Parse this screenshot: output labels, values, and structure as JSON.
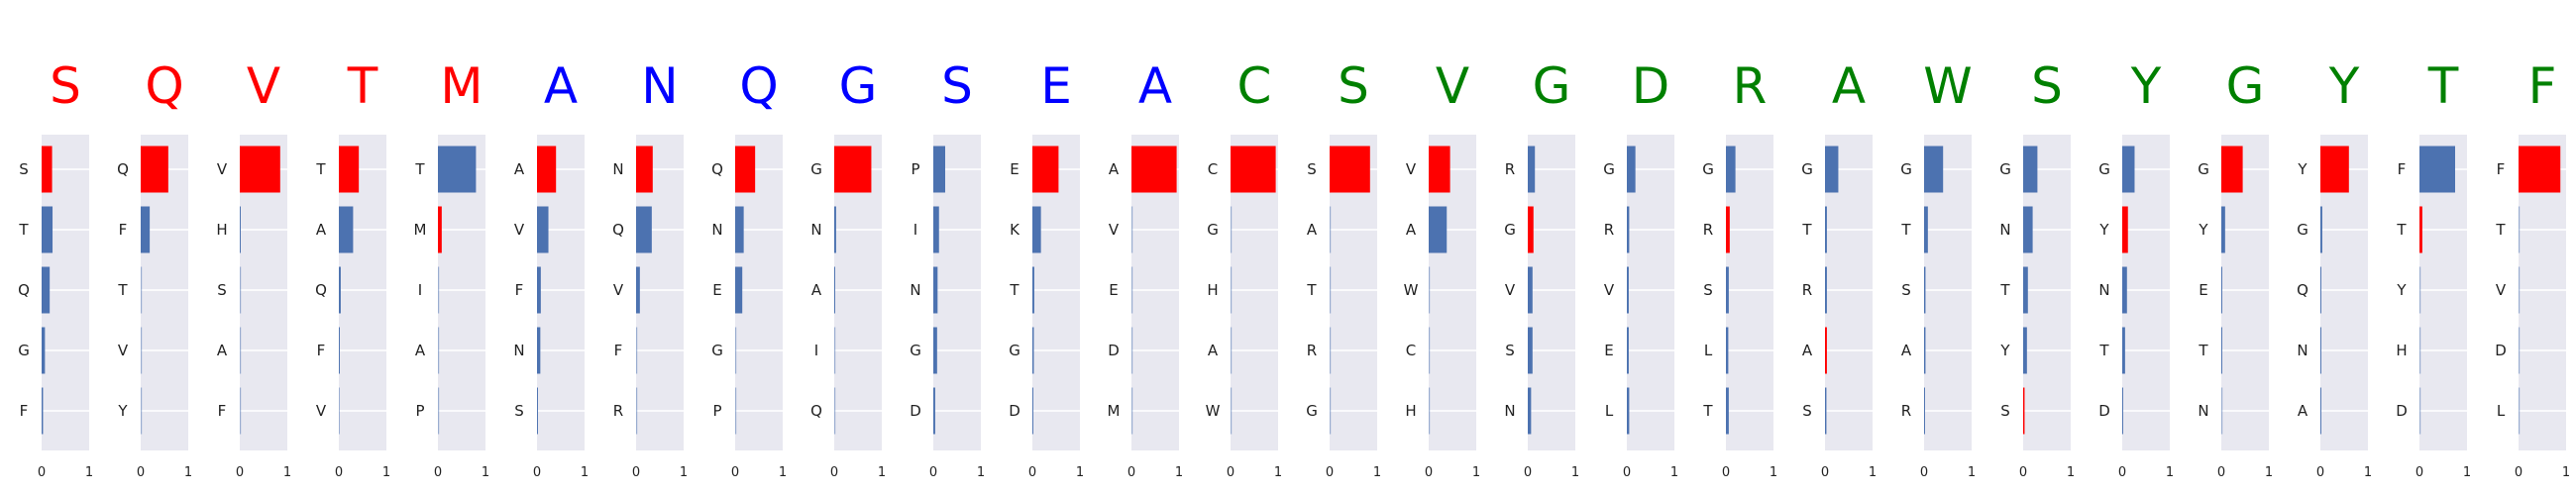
{
  "chart_data": {
    "type": "bar",
    "orientation": "horizontal",
    "xlim": [
      0,
      1
    ],
    "x_ticks": [
      "0",
      "1"
    ],
    "grid": true,
    "colors": {
      "red": "#ff0000",
      "blue": "#0000ff",
      "green": "#008000",
      "bar_default": "#4c72b0",
      "bar_highlight": "#ff0000",
      "panel_bg": "#e8e8f0"
    },
    "panels": [
      {
        "residue": "S",
        "color": "red",
        "labels": [
          "S",
          "T",
          "Q",
          "G",
          "F"
        ],
        "values": [
          0.22,
          0.23,
          0.17,
          0.07,
          0.03
        ],
        "highlight": 0
      },
      {
        "residue": "Q",
        "color": "red",
        "labels": [
          "Q",
          "F",
          "T",
          "V",
          "Y"
        ],
        "values": [
          0.58,
          0.19,
          0.0,
          0.0,
          0.0
        ],
        "highlight": 0
      },
      {
        "residue": "V",
        "color": "red",
        "labels": [
          "V",
          "H",
          "S",
          "A",
          "F"
        ],
        "values": [
          0.85,
          0.02,
          0.0,
          0.0,
          0.0
        ],
        "highlight": 0
      },
      {
        "residue": "T",
        "color": "red",
        "labels": [
          "T",
          "A",
          "Q",
          "F",
          "V"
        ],
        "values": [
          0.42,
          0.3,
          0.04,
          0.02,
          0.01
        ],
        "highlight": 0
      },
      {
        "residue": "M",
        "color": "red",
        "labels": [
          "T",
          "M",
          "I",
          "A",
          "P"
        ],
        "values": [
          0.8,
          0.08,
          0.0,
          0.0,
          0.0
        ],
        "highlight": 1
      },
      {
        "residue": "A",
        "color": "blue",
        "labels": [
          "A",
          "V",
          "F",
          "N",
          "S"
        ],
        "values": [
          0.4,
          0.24,
          0.08,
          0.07,
          0.02
        ],
        "highlight": 0
      },
      {
        "residue": "N",
        "color": "blue",
        "labels": [
          "N",
          "Q",
          "V",
          "F",
          "R"
        ],
        "values": [
          0.35,
          0.33,
          0.08,
          0.0,
          0.0
        ],
        "highlight": 0
      },
      {
        "residue": "Q",
        "color": "blue",
        "labels": [
          "Q",
          "N",
          "E",
          "G",
          "P"
        ],
        "values": [
          0.42,
          0.18,
          0.15,
          0.0,
          0.0
        ],
        "highlight": 0
      },
      {
        "residue": "G",
        "color": "blue",
        "labels": [
          "G",
          "N",
          "A",
          "I",
          "Q"
        ],
        "values": [
          0.78,
          0.04,
          0.02,
          0.0,
          0.0
        ],
        "highlight": 0
      },
      {
        "residue": "S",
        "color": "blue",
        "labels": [
          "P",
          "I",
          "N",
          "G",
          "D"
        ],
        "values": [
          0.25,
          0.12,
          0.09,
          0.08,
          0.04
        ],
        "highlight": -1
      },
      {
        "residue": "E",
        "color": "blue",
        "labels": [
          "E",
          "K",
          "T",
          "G",
          "D"
        ],
        "values": [
          0.55,
          0.18,
          0.04,
          0.03,
          0.02
        ],
        "highlight": 0
      },
      {
        "residue": "A",
        "color": "blue",
        "labels": [
          "A",
          "V",
          "E",
          "D",
          "M"
        ],
        "values": [
          0.95,
          0.0,
          0.0,
          0.0,
          0.0
        ],
        "highlight": 0
      },
      {
        "residue": "C",
        "color": "green",
        "labels": [
          "C",
          "G",
          "H",
          "A",
          "W"
        ],
        "values": [
          0.95,
          0.0,
          0.0,
          0.0,
          0.0
        ],
        "highlight": 0
      },
      {
        "residue": "S",
        "color": "green",
        "labels": [
          "S",
          "A",
          "T",
          "R",
          "G"
        ],
        "values": [
          0.85,
          0.0,
          0.0,
          0.0,
          0.0
        ],
        "highlight": 0
      },
      {
        "residue": "V",
        "color": "green",
        "labels": [
          "V",
          "A",
          "W",
          "C",
          "H"
        ],
        "values": [
          0.45,
          0.38,
          0.0,
          0.0,
          0.0
        ],
        "highlight": 0
      },
      {
        "residue": "G",
        "color": "green",
        "labels": [
          "R",
          "G",
          "V",
          "S",
          "N"
        ],
        "values": [
          0.15,
          0.12,
          0.1,
          0.1,
          0.07
        ],
        "highlight": 1
      },
      {
        "residue": "D",
        "color": "green",
        "labels": [
          "G",
          "R",
          "V",
          "E",
          "L"
        ],
        "values": [
          0.18,
          0.05,
          0.04,
          0.04,
          0.05
        ],
        "highlight": -1
      },
      {
        "residue": "R",
        "color": "green",
        "labels": [
          "G",
          "R",
          "S",
          "L",
          "T"
        ],
        "values": [
          0.2,
          0.08,
          0.06,
          0.05,
          0.06
        ],
        "highlight": 1
      },
      {
        "residue": "A",
        "color": "green",
        "labels": [
          "G",
          "T",
          "R",
          "A",
          "S"
        ],
        "values": [
          0.28,
          0.04,
          0.04,
          0.04,
          0.03
        ],
        "highlight": 3
      },
      {
        "residue": "W",
        "color": "green",
        "labels": [
          "G",
          "T",
          "S",
          "A",
          "R"
        ],
        "values": [
          0.4,
          0.08,
          0.03,
          0.03,
          0.02
        ],
        "highlight": -1
      },
      {
        "residue": "S",
        "color": "green",
        "labels": [
          "G",
          "N",
          "T",
          "Y",
          "S"
        ],
        "values": [
          0.3,
          0.2,
          0.1,
          0.08,
          0.03
        ],
        "highlight": 4
      },
      {
        "residue": "Y",
        "color": "green",
        "labels": [
          "G",
          "Y",
          "N",
          "T",
          "D"
        ],
        "values": [
          0.26,
          0.12,
          0.1,
          0.06,
          0.02
        ],
        "highlight": 1
      },
      {
        "residue": "G",
        "color": "green",
        "labels": [
          "G",
          "Y",
          "E",
          "T",
          "N"
        ],
        "values": [
          0.45,
          0.08,
          0.02,
          0.02,
          0.0
        ],
        "highlight": 0
      },
      {
        "residue": "Y",
        "color": "green",
        "labels": [
          "Y",
          "G",
          "Q",
          "N",
          "A"
        ],
        "values": [
          0.6,
          0.04,
          0.02,
          0.02,
          0.02
        ],
        "highlight": 0
      },
      {
        "residue": "T",
        "color": "green",
        "labels": [
          "F",
          "T",
          "Y",
          "H",
          "D"
        ],
        "values": [
          0.75,
          0.06,
          0.0,
          0.0,
          0.0
        ],
        "highlight": 1
      },
      {
        "residue": "F",
        "color": "green",
        "labels": [
          "F",
          "T",
          "V",
          "D",
          "L"
        ],
        "values": [
          0.88,
          0.0,
          0.0,
          0.0,
          0.0
        ],
        "highlight": 0
      }
    ]
  }
}
